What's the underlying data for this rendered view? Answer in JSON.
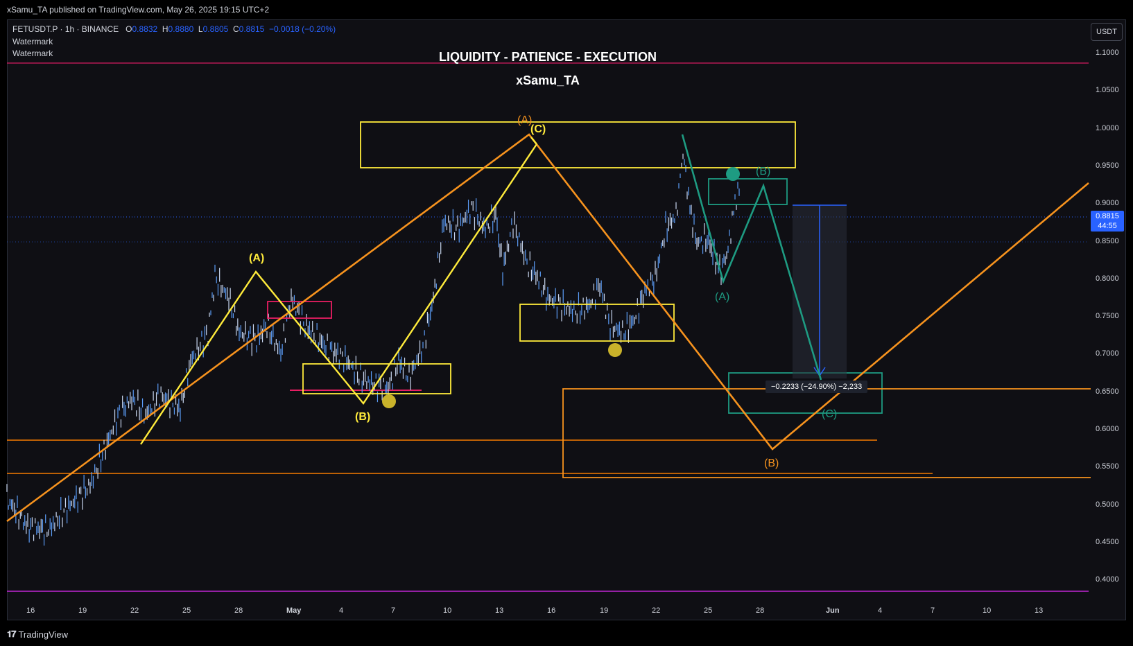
{
  "publish_line": "xSamu_TA published on TradingView.com, May 26, 2025 19:15 UTC+2",
  "legend": {
    "symbol": "FETUSDT.P · 1h · BINANCE",
    "open_label": "O",
    "open": "0.8832",
    "high_label": "H",
    "high": "0.8880",
    "low_label": "L",
    "low": "0.8805",
    "close_label": "C",
    "close": "0.8815",
    "change": "−0.0018 (−0.20%)",
    "watermark1": "Watermark",
    "watermark2": "Watermark"
  },
  "currency_button": "USDT",
  "title_line1": "LIQUIDITY - PATIENCE - EXECUTION",
  "title_line2": "xSamu_TA",
  "current_price": {
    "price": "0.8815",
    "countdown": "44:55"
  },
  "price_axis": [
    "1.1000",
    "1.0500",
    "1.0000",
    "0.9500",
    "0.9000",
    "0.8500",
    "0.8000",
    "0.7500",
    "0.7000",
    "0.6500",
    "0.6000",
    "0.5500",
    "0.5000",
    "0.4500",
    "0.4000"
  ],
  "time_axis": [
    "16",
    "19",
    "22",
    "25",
    "28",
    "May",
    "4",
    "7",
    "10",
    "13",
    "16",
    "19",
    "22",
    "25",
    "28",
    "Jun",
    "4",
    "7",
    "10",
    "13"
  ],
  "wave_labels": {
    "yA": "(A)",
    "yB": "(B)",
    "yC": "(C)",
    "oA": "(A)",
    "gB": "(B)",
    "gA": "(A)",
    "gC": "(C)",
    "oB": "(B)"
  },
  "measure_label": "−0.2233 (−24.90%) −2,233",
  "footer_brand": "TradingView",
  "colors": {
    "background": "#0f0f14",
    "candles": "#5b9cf6",
    "yellow": "#ffeb3b",
    "orange": "#f7931e",
    "green": "#1e9b82",
    "pink": "#e91e63",
    "magenta": "#d026d0",
    "accent": "#2962ff"
  },
  "icons": [
    "tradingview-logo-icon"
  ]
}
